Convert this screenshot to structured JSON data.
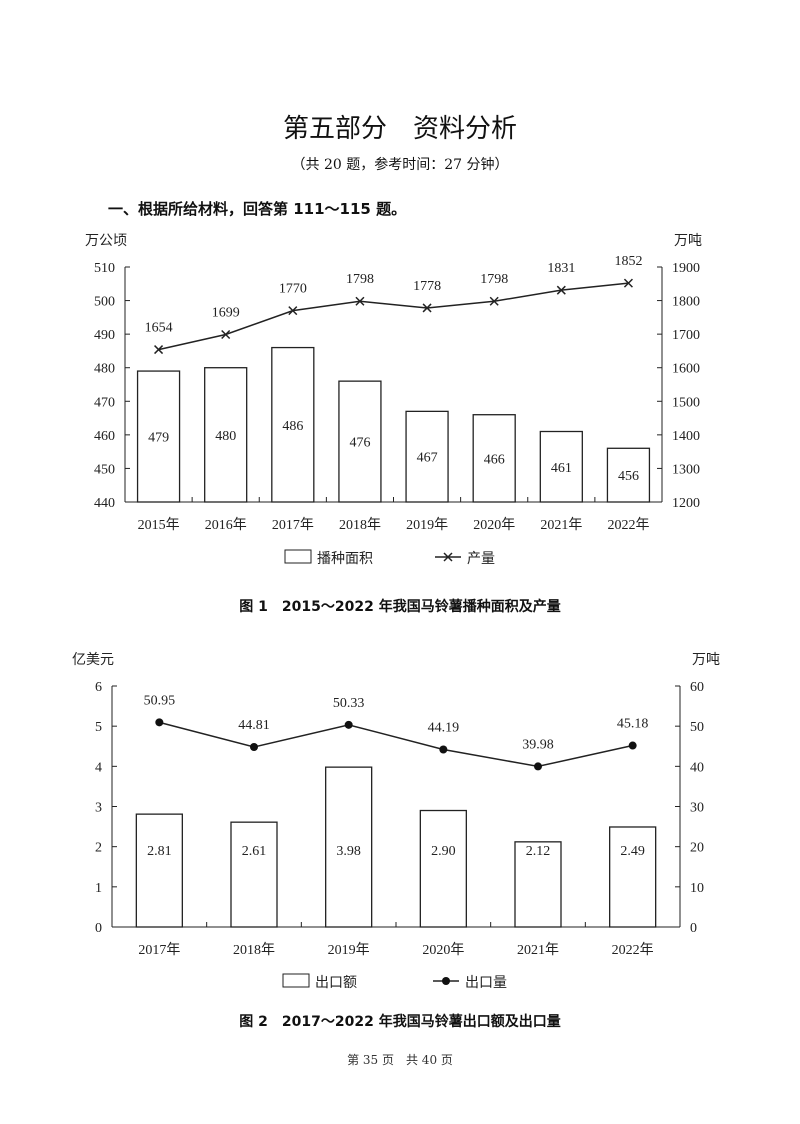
{
  "page": {
    "title": "第五部分　资料分析",
    "subtitle": "（共 20 题，参考时间：27 分钟）",
    "section": "一、根据所给材料，回答第 111～115 题。",
    "footer": "第 35 页　共 40 页"
  },
  "chart_data": [
    {
      "type": "bar+line",
      "title": "图 1　2015～2022 年我国马铃薯播种面积及产量",
      "categories": [
        "2015年",
        "2016年",
        "2017年",
        "2018年",
        "2019年",
        "2020年",
        "2021年",
        "2022年"
      ],
      "ylabel_left": "万公顷",
      "ylabel_right": "万吨",
      "ylim_left": [
        440,
        510
      ],
      "yticks_left": [
        440,
        450,
        460,
        470,
        480,
        490,
        500,
        510
      ],
      "ylim_right": [
        1200,
        1900
      ],
      "yticks_right": [
        1200,
        1300,
        1400,
        1500,
        1600,
        1700,
        1800,
        1900
      ],
      "series": [
        {
          "name": "播种面积",
          "type": "bar",
          "axis": "left",
          "values": [
            479,
            480,
            486,
            476,
            467,
            466,
            461,
            456
          ]
        },
        {
          "name": "产量",
          "type": "line",
          "marker": "x",
          "axis": "right",
          "values": [
            1654,
            1699,
            1770,
            1798,
            1778,
            1798,
            1831,
            1852
          ]
        }
      ],
      "legend": "bottom"
    },
    {
      "type": "bar+line",
      "title": "图 2　2017～2022 年我国马铃薯出口额及出口量",
      "categories": [
        "2017年",
        "2018年",
        "2019年",
        "2020年",
        "2021年",
        "2022年"
      ],
      "ylabel_left": "亿美元",
      "ylabel_right": "万吨",
      "ylim_left": [
        0,
        6
      ],
      "yticks_left": [
        0,
        1,
        2,
        3,
        4,
        5,
        6
      ],
      "ylim_right": [
        0,
        60
      ],
      "yticks_right": [
        0,
        10,
        20,
        30,
        40,
        50,
        60
      ],
      "series": [
        {
          "name": "出口额",
          "type": "bar",
          "axis": "left",
          "values": [
            2.81,
            2.61,
            3.98,
            2.9,
            2.12,
            2.49
          ],
          "labels": [
            "2.81",
            "2.61",
            "3.98",
            "2.90",
            "2.12",
            "2.49"
          ]
        },
        {
          "name": "出口量",
          "type": "line",
          "marker": "dot",
          "axis": "right",
          "values": [
            50.95,
            44.81,
            50.33,
            44.19,
            39.98,
            45.18
          ],
          "labels": [
            "50.95",
            "44.81",
            "50.33",
            "44.19",
            "39.98",
            "45.18"
          ]
        }
      ],
      "legend": "bottom"
    }
  ]
}
